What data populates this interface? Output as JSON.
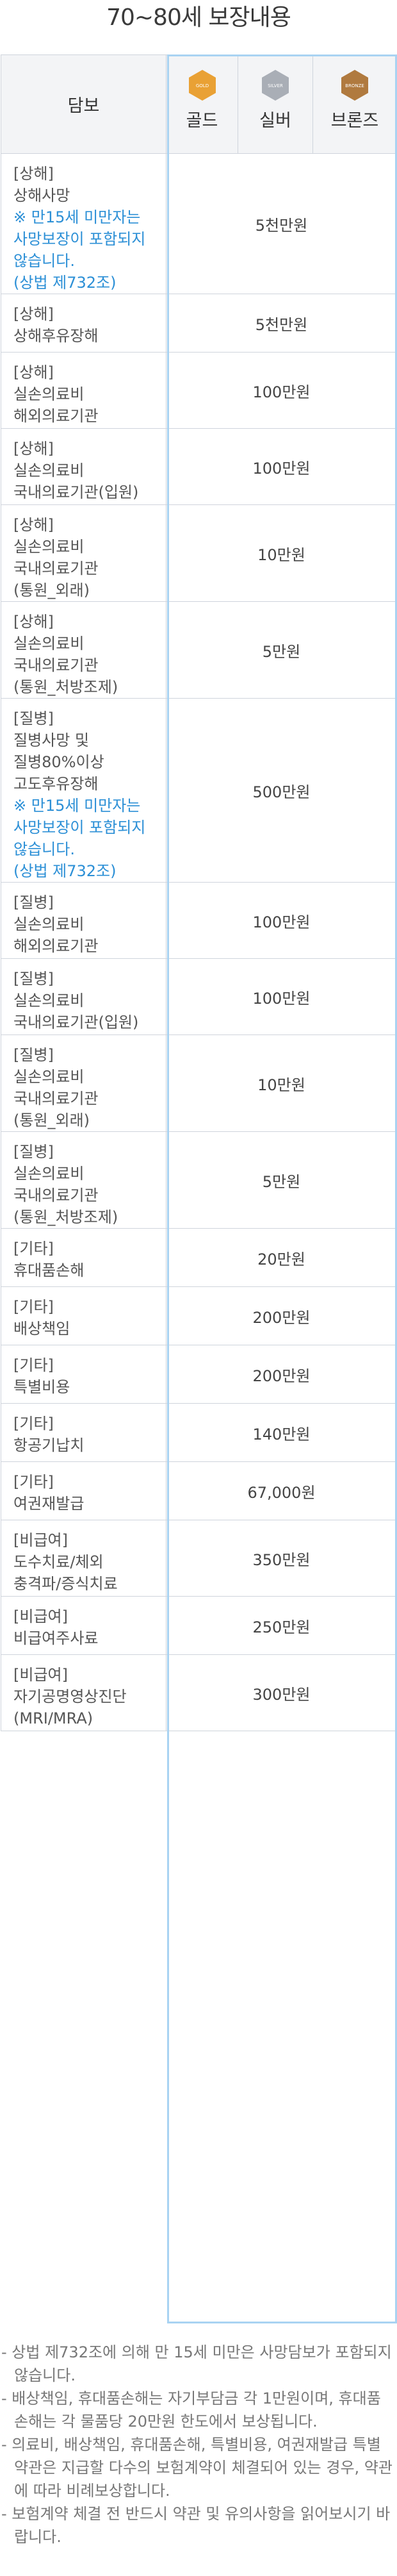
{
  "page": {
    "title": "70~80세 보장내용"
  },
  "header": {
    "coverage": "담보",
    "tiers": [
      {
        "label": "골드",
        "badge_text": "GOLD",
        "color": "#e9a135"
      },
      {
        "label": "실버",
        "badge_text": "SILVER",
        "color": "#a9aeb6"
      },
      {
        "label": "브론즈",
        "badge_text": "BRONZE",
        "color": "#b07a3f"
      }
    ]
  },
  "rows": [
    {
      "category": "[상해]",
      "lines": [
        "상해사망"
      ],
      "notes": [
        "※ 만15세 미만자는",
        "사망보장이 포함되지",
        "않습니다.",
        "(상법 제732조)"
      ],
      "amount": "5천만원"
    },
    {
      "category": "[상해]",
      "lines": [
        "상해후유장해"
      ],
      "notes": [],
      "amount": "5천만원"
    },
    {
      "category": "[상해]",
      "lines": [
        "실손의료비",
        "해외의료기관"
      ],
      "notes": [],
      "amount": "100만원"
    },
    {
      "category": "[상해]",
      "lines": [
        "실손의료비",
        "국내의료기관(입원)"
      ],
      "notes": [],
      "amount": "100만원"
    },
    {
      "category": "[상해]",
      "lines": [
        "실손의료비",
        "국내의료기관",
        "(통원_외래)"
      ],
      "notes": [],
      "amount": "10만원"
    },
    {
      "category": "[상해]",
      "lines": [
        "실손의료비",
        "국내의료기관",
        "(통원_처방조제)"
      ],
      "notes": [],
      "amount": "5만원"
    },
    {
      "category": "[질병]",
      "lines": [
        "질병사망 및",
        "질병80%이상",
        "고도후유장해"
      ],
      "notes": [
        "※ 만15세 미만자는",
        "사망보장이 포함되지",
        "않습니다.",
        "(상법 제732조)"
      ],
      "amount": "500만원"
    },
    {
      "category": "[질병]",
      "lines": [
        "실손의료비",
        "해외의료기관"
      ],
      "notes": [],
      "amount": "100만원"
    },
    {
      "category": "[질병]",
      "lines": [
        "실손의료비",
        "국내의료기관(입원)"
      ],
      "notes": [],
      "amount": "100만원"
    },
    {
      "category": "[질병]",
      "lines": [
        "실손의료비",
        "국내의료기관",
        "(통원_외래)"
      ],
      "notes": [],
      "amount": "10만원"
    },
    {
      "category": "[질병]",
      "lines": [
        "실손의료비",
        "국내의료기관",
        "(통원_처방조제)"
      ],
      "notes": [],
      "amount": "5만원"
    },
    {
      "category": "[기타]",
      "lines": [
        "휴대품손해"
      ],
      "notes": [],
      "amount": "20만원"
    },
    {
      "category": "[기타]",
      "lines": [
        "배상책임"
      ],
      "notes": [],
      "amount": "200만원"
    },
    {
      "category": "[기타]",
      "lines": [
        "특별비용"
      ],
      "notes": [],
      "amount": "200만원"
    },
    {
      "category": "[기타]",
      "lines": [
        "항공기납치"
      ],
      "notes": [],
      "amount": "140만원"
    },
    {
      "category": "[기타]",
      "lines": [
        "여권재발급"
      ],
      "notes": [],
      "amount": "67,000원"
    },
    {
      "category": "[비급여]",
      "lines": [
        "도수치료/체외",
        "충격파/증식치료"
      ],
      "notes": [],
      "amount": "350만원"
    },
    {
      "category": "[비급여]",
      "lines": [
        "비급여주사료"
      ],
      "notes": [],
      "amount": "250만원"
    },
    {
      "category": "[비급여]",
      "lines": [
        "자기공명영상진단",
        "(MRI/MRA)"
      ],
      "notes": [],
      "amount": "300만원"
    }
  ],
  "footnotes": [
    "- 상법 제732조에 의해 만 15세 미만은 사망담보가 포함되지 않습니다.",
    "- 배상책임, 휴대품손해는 자기부담금 각 1만원이며, 휴대품손해는 각 물품당 20만원 한도에서 보상됩니다.",
    "- 의료비, 배상책임, 휴대품손해, 특별비용, 여권재발급 특별약관은 지급할 다수의 보험계약이 체결되어 있는 경우, 약관에 따라 비례보상합니다.",
    "- 보험계약 체결 전 반드시 약관 및 유의사항을 읽어보시기 바랍니다."
  ]
}
